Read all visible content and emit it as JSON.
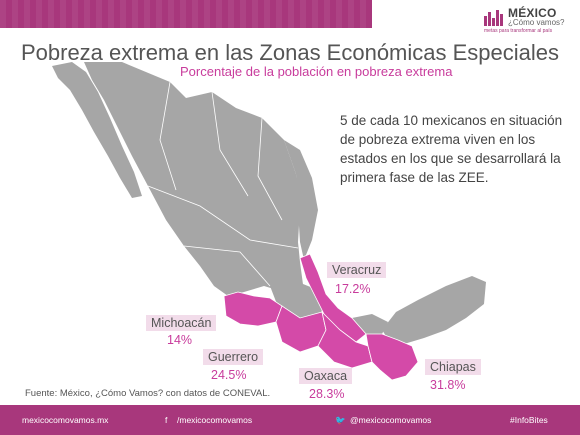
{
  "header": {
    "title": "Pobreza extrema en las Zonas Económicas Especiales",
    "subtitle": "Porcentaje de la población en pobreza extrema"
  },
  "logo": {
    "title": "MÉXICO",
    "subtitle": "¿Cómo vamos?",
    "tagline": "metas para transformar al país"
  },
  "note": "5 de cada 10 mexicanos en situación de pobreza extrema viven en los estados en los que se desarrollará la primera fase de las ZEE.",
  "states": [
    {
      "name": "Veracruz",
      "value": "17.2%"
    },
    {
      "name": "Michoacán",
      "value": "14%"
    },
    {
      "name": "Guerrero",
      "value": "24.5%"
    },
    {
      "name": "Oaxaca",
      "value": "28.3%"
    },
    {
      "name": "Chiapas",
      "value": "31.8%"
    }
  ],
  "source": "Fuente: México, ¿Cómo Vamos? con datos de CONEVAL.",
  "footer": {
    "site": "mexicocomovamos.mx",
    "facebook": "/mexicocomovamos",
    "twitter": "@mexicocomovamos",
    "hashtag": "#InfoBites"
  },
  "colors": {
    "brand": "#a8377c",
    "highlight": "#d44aa8",
    "map_gray": "#a6a6a6",
    "label_bg": "#f2dcea"
  }
}
